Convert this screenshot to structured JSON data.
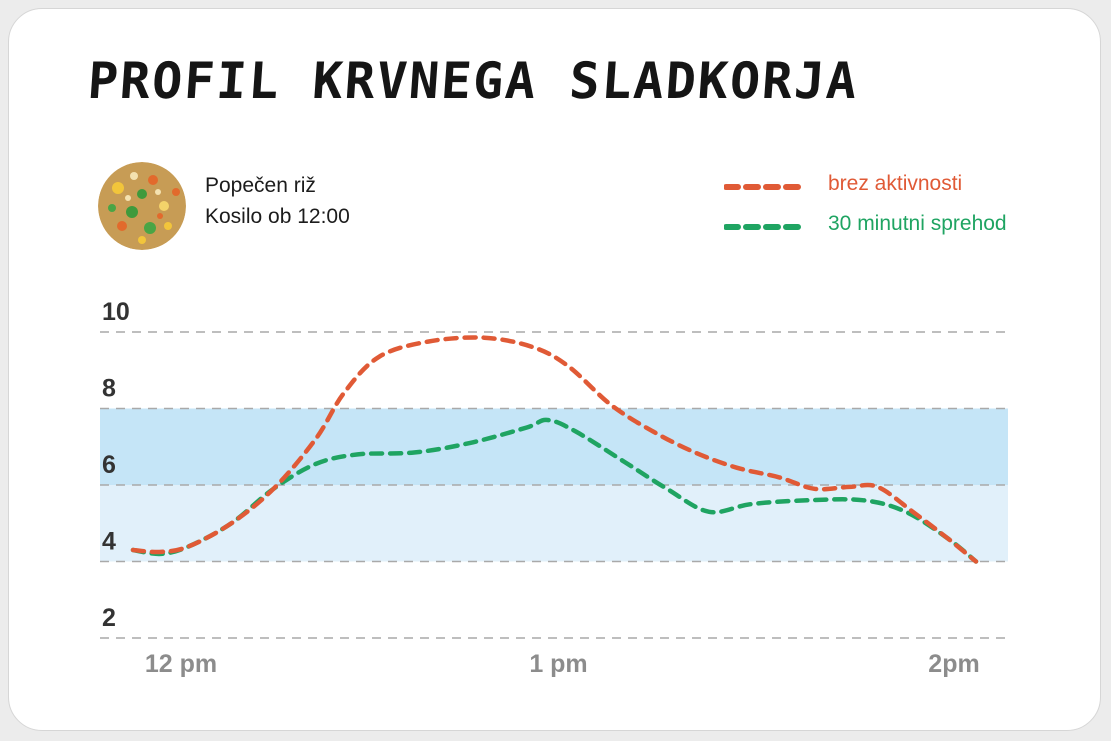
{
  "chart_data": {
    "type": "line",
    "title": "PROFIL KRVNEGA SLADKORJA",
    "xlabel": "",
    "ylabel": "",
    "ylim": [
      2,
      10
    ],
    "y_ticks": [
      10,
      8,
      6,
      4,
      2
    ],
    "x_ticks": [
      {
        "label": "12 pm",
        "value": 0
      },
      {
        "label": "1 pm",
        "value": 60
      },
      {
        "label": "2pm",
        "value": 120
      }
    ],
    "x_unit": "minutes after 12 pm",
    "target_bands": [
      {
        "from": 4,
        "to": 6,
        "color": "#e1f0fa"
      },
      {
        "from": 6,
        "to": 8,
        "color": "#c5e5f7"
      }
    ],
    "grid": true,
    "legend_position": "top-right",
    "series": [
      {
        "name": "brez aktivnosti",
        "color": "#e05a36",
        "points": [
          [
            0,
            4.3
          ],
          [
            4,
            4.25
          ],
          [
            8,
            4.4
          ],
          [
            14,
            5.0
          ],
          [
            20,
            5.9
          ],
          [
            26,
            7.2
          ],
          [
            30,
            8.4
          ],
          [
            35,
            9.35
          ],
          [
            42,
            9.75
          ],
          [
            50,
            9.85
          ],
          [
            57,
            9.6
          ],
          [
            62,
            9.1
          ],
          [
            68,
            8.1
          ],
          [
            74,
            7.4
          ],
          [
            80,
            6.85
          ],
          [
            86,
            6.45
          ],
          [
            92,
            6.2
          ],
          [
            97,
            5.9
          ],
          [
            102,
            5.95
          ],
          [
            106,
            5.95
          ],
          [
            111,
            5.3
          ],
          [
            116,
            4.6
          ],
          [
            120,
            4.0
          ]
        ]
      },
      {
        "name": "30 minutni sprehod",
        "color": "#1fa462",
        "points": [
          [
            0,
            4.3
          ],
          [
            4,
            4.2
          ],
          [
            8,
            4.4
          ],
          [
            14,
            5.0
          ],
          [
            20,
            5.9
          ],
          [
            26,
            6.55
          ],
          [
            32,
            6.8
          ],
          [
            40,
            6.85
          ],
          [
            48,
            7.1
          ],
          [
            56,
            7.5
          ],
          [
            59,
            7.7
          ],
          [
            63,
            7.4
          ],
          [
            70,
            6.6
          ],
          [
            76,
            5.9
          ],
          [
            82,
            5.3
          ],
          [
            88,
            5.5
          ],
          [
            96,
            5.6
          ],
          [
            104,
            5.6
          ],
          [
            110,
            5.3
          ],
          [
            116,
            4.6
          ],
          [
            120,
            4.0
          ]
        ]
      }
    ]
  },
  "meal": {
    "name": "Popečen riž",
    "time": "Kosilo ob 12:00",
    "image_icon": "fried-rice-photo"
  }
}
